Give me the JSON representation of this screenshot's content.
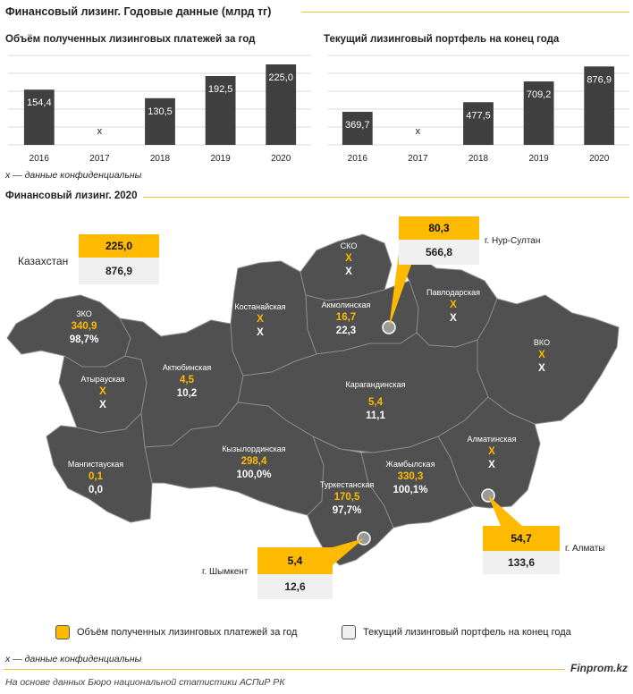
{
  "title": "Финансовый лизинг. Годовые данные (млрд тг)",
  "note_confidential": "x — данные конфиденциальны",
  "map_title": "Финансовый лизинг. 2020",
  "colors": {
    "accent": "#fdba00",
    "bar": "#404040",
    "map": "#505050",
    "box_light": "#f0f0f0"
  },
  "chart_data": [
    {
      "type": "bar",
      "title": "Объём полученных лизинговых платежей за год",
      "categories": [
        "2016",
        "2017",
        "2018",
        "2019",
        "2020"
      ],
      "values": [
        154.4,
        null,
        130.5,
        192.5,
        225.0
      ],
      "labels": [
        "154,4",
        "x",
        "130,5",
        "192,5",
        "225,0"
      ],
      "ylim": [
        0,
        250
      ],
      "grid": true
    },
    {
      "type": "bar",
      "title": "Текущий лизинговый портфель на конец года",
      "categories": [
        "2016",
        "2017",
        "2018",
        "2019",
        "2020"
      ],
      "values": [
        369.7,
        null,
        477.5,
        709.2,
        876.9
      ],
      "labels": [
        "369,7",
        "x",
        "477,5",
        "709,2",
        "876,9"
      ],
      "ylim": [
        0,
        1000
      ],
      "grid": true
    }
  ],
  "kz": {
    "name": "Казахстан",
    "payments": "225,0",
    "portfolio": "876,9"
  },
  "cities": [
    {
      "name": "г. Нур-Султан",
      "payments": "80,3",
      "portfolio": "566,8"
    },
    {
      "name": "г. Шымкент",
      "payments": "5,4",
      "portfolio": "12,6"
    },
    {
      "name": "г. Алматы",
      "payments": "54,7",
      "portfolio": "133,6"
    }
  ],
  "regions": [
    {
      "name": "СКО",
      "v1": "X",
      "v2": "X"
    },
    {
      "name": "Костанайская",
      "v1": "X",
      "v2": "X"
    },
    {
      "name": "Акмолинская",
      "v1": "16,7",
      "v2": "22,3"
    },
    {
      "name": "Павлодарская",
      "v1": "X",
      "v2": "X"
    },
    {
      "name": "ЗКО",
      "v1": "340,9",
      "v2": "98,7%"
    },
    {
      "name": "ВКО",
      "v1": "X",
      "v2": "X"
    },
    {
      "name": "Актюбинская",
      "v1": "4,5",
      "v2": "10,2"
    },
    {
      "name": "Атырауская",
      "v1": "X",
      "v2": "X"
    },
    {
      "name": "Карагандинская",
      "v1": "5,4",
      "v2": "11,1"
    },
    {
      "name": "Мангистауская",
      "v1": "0,1",
      "v2": "0,0"
    },
    {
      "name": "Кызылординская",
      "v1": "298,4",
      "v2": "100,0%"
    },
    {
      "name": "Алматинская",
      "v1": "X",
      "v2": "X"
    },
    {
      "name": "Туркестанская",
      "v1": "170,5",
      "v2": "97,7%"
    },
    {
      "name": "Жамбылская",
      "v1": "330,3",
      "v2": "100,1%"
    }
  ],
  "legend": [
    "Объём полученных лизинговых платежей за год",
    "Текущий лизинговый портфель на конец года"
  ],
  "brand": "Finprom.kz",
  "source": "На основе данных Бюро национальной статистики АСПиР РК"
}
